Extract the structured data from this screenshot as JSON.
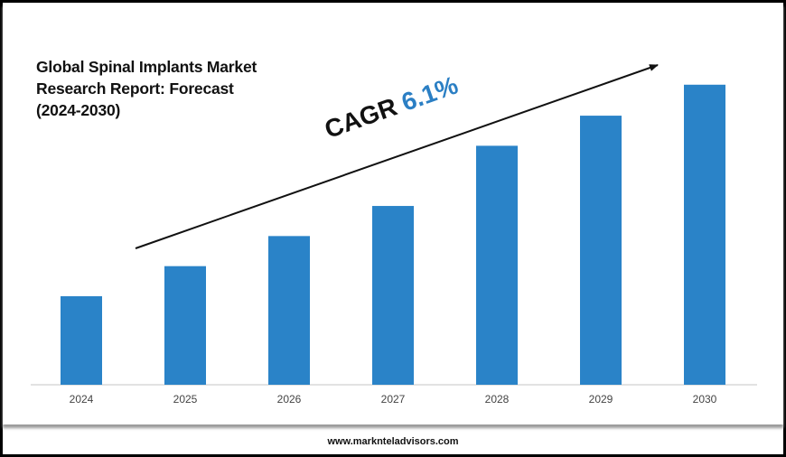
{
  "chart_data": {
    "type": "bar",
    "title": "Global Spinal Implants Market Research Report: Forecast (2024-2030)",
    "title_lines": [
      "Global Spinal Implants Market",
      "Research Report: Forecast",
      "(2024-2030)"
    ],
    "categories": [
      "2024",
      "2025",
      "2026",
      "2027",
      "2028",
      "2029",
      "2030"
    ],
    "values": [
      1.0,
      1.34,
      1.68,
      2.02,
      2.7,
      3.04,
      3.39
    ],
    "value_note": "relative bar heights (no y-axis printed)",
    "xlabel": "",
    "ylabel": "",
    "grid": false,
    "legend": "none",
    "bar_color": "#2a83c8",
    "annotation": {
      "label": "CAGR",
      "value": "6.1%",
      "value_color": "#2b7fc4",
      "arrow": "trend-up"
    }
  },
  "footer": {
    "website": "www.marknteladvisors.com"
  }
}
